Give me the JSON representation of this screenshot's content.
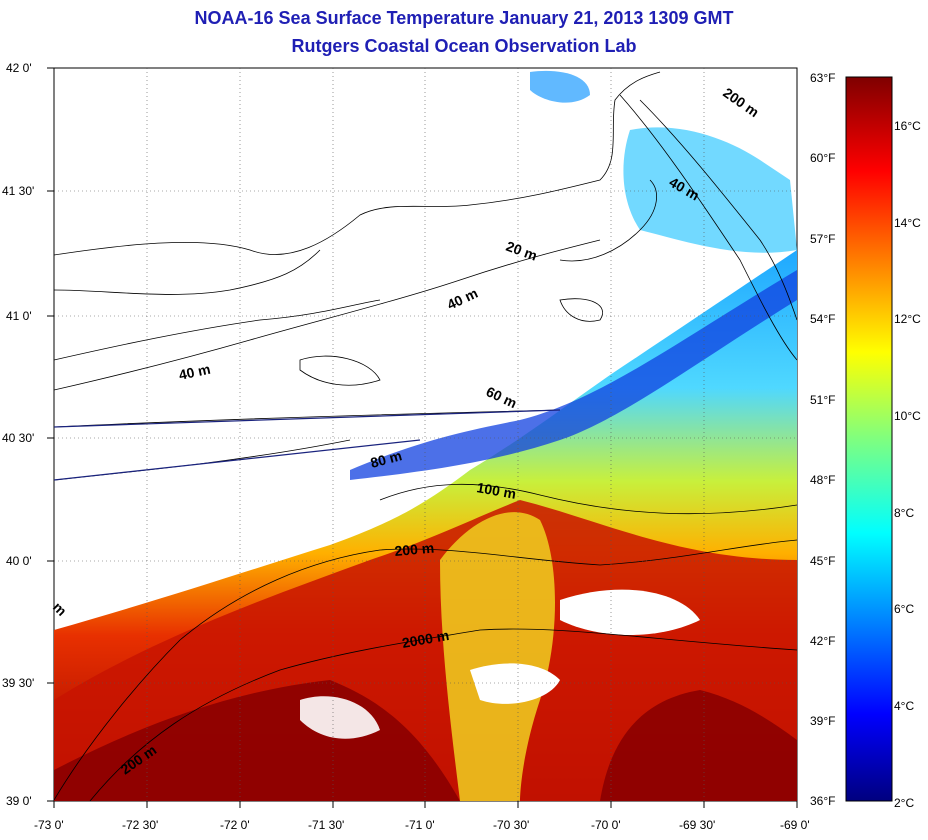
{
  "header": {
    "title": "NOAA-16 Sea Surface Temperature January 21, 2013 1309 GMT",
    "subtitle": "Rutgers Coastal Ocean Observation Lab"
  },
  "map": {
    "lat_labels": [
      "42 0'",
      "41 30'",
      "41 0'",
      "40 30'",
      "40 0'",
      "39 30'",
      "39 0'"
    ],
    "lon_labels": [
      "-73 0'",
      "-72 30'",
      "-72 0'",
      "-71 30'",
      "-71 0'",
      "-70 30'",
      "-70 0'",
      "-69 30'",
      "-69 0'"
    ],
    "fahrenheit_labels": [
      "63°F",
      "60°F",
      "57°F",
      "54°F",
      "51°F",
      "48°F",
      "45°F",
      "42°F",
      "39°F",
      "36°F"
    ],
    "celsius_labels": [
      "16°C",
      "14°C",
      "12°C",
      "10°C",
      "8°C",
      "6°C",
      "4°C",
      "2°C"
    ],
    "contour_labels": [
      "200 m",
      "40 m",
      "20 m",
      "40 m",
      "40 m",
      "60 m",
      "80 m",
      "100 m",
      "200 m",
      "2000 m",
      "200 m",
      "m"
    ],
    "colors": {
      "title": "#1f1fb4",
      "land_cloud": "#ffffff",
      "warm": "#8b0000",
      "cold": "#00007f"
    }
  }
}
